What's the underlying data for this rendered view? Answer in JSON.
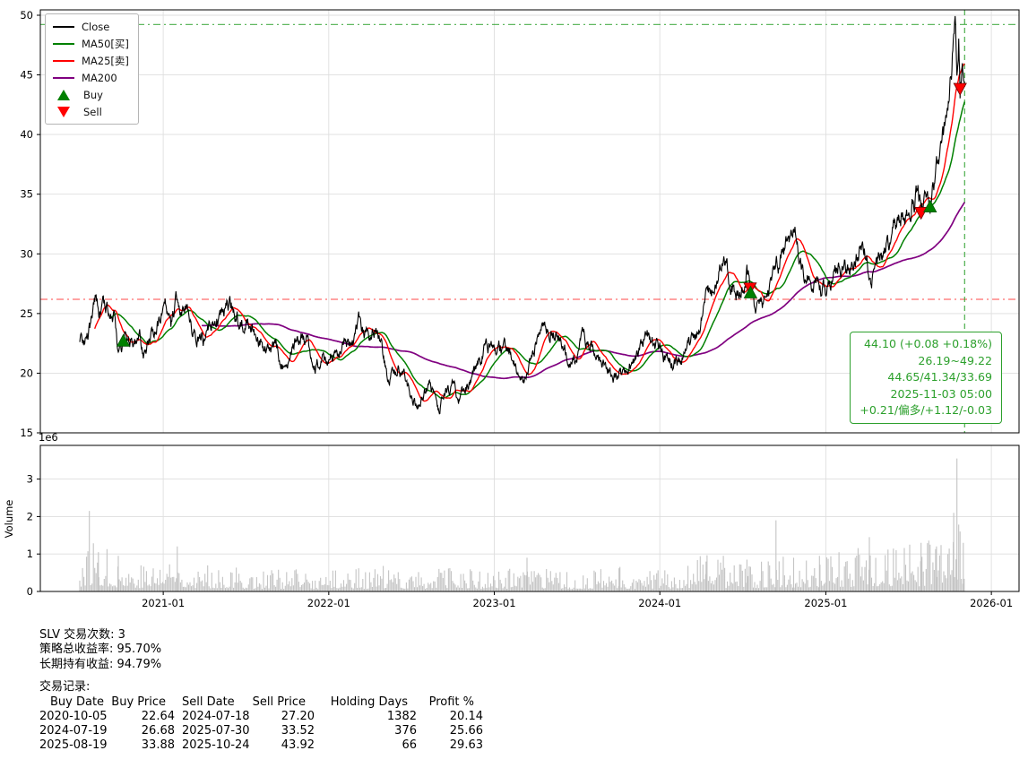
{
  "colors": {
    "close": "#000000",
    "ma50": "#008000",
    "ma25": "#ff0000",
    "ma200": "#800080",
    "buy": "#008000",
    "sell": "#ff0000",
    "hline_high": "#2ca02c",
    "hline_low": "#ff3b3b",
    "vline": "#2ca02c",
    "volume": "#c4c4c4",
    "grid": "#dedede",
    "annotation": "#2ca02c"
  },
  "chart_data": {
    "type": "line",
    "title": "",
    "xlabel": "",
    "ylabel_volume": "Volume",
    "volume_scale_label": "1e6",
    "xlim": [
      "2020-04-05",
      "2026-03-03"
    ],
    "x_ticks": [
      "2021-01",
      "2022-01",
      "2023-01",
      "2024-01",
      "2025-01",
      "2026-01"
    ],
    "price_ylim": [
      15,
      50
    ],
    "price_yticks": [
      15,
      20,
      25,
      30,
      35,
      40,
      45,
      50
    ],
    "volume_ylim": [
      0,
      3900000
    ],
    "volume_yticks": [
      0,
      1,
      2,
      3
    ],
    "ma_windows": {
      "ma25": 25,
      "ma50": 50,
      "ma200": 200
    },
    "legend": [
      {
        "key": "close",
        "label": "Close",
        "type": "line",
        "color_key": "close",
        "icon": "close-line-swatch"
      },
      {
        "key": "ma50",
        "label": "MA50[买]",
        "type": "line",
        "color_key": "ma50",
        "icon": "ma50-line-swatch"
      },
      {
        "key": "ma25",
        "label": "MA25[卖]",
        "type": "line",
        "color_key": "ma25",
        "icon": "ma25-line-swatch"
      },
      {
        "key": "ma200",
        "label": "MA200",
        "type": "line",
        "color_key": "ma200",
        "icon": "ma200-line-swatch"
      },
      {
        "key": "buy",
        "label": "Buy",
        "type": "triangle-up",
        "color_key": "buy",
        "icon": "buy-triangle-icon"
      },
      {
        "key": "sell",
        "label": "Sell",
        "type": "triangle-down",
        "color_key": "sell",
        "icon": "sell-triangle-icon"
      }
    ],
    "hlines": [
      {
        "name": "high-52w-line",
        "value": 49.22,
        "color_key": "hline_high",
        "style": "dashdot"
      },
      {
        "name": "low-52w-line",
        "value": 26.19,
        "color_key": "hline_low",
        "style": "dashdot"
      }
    ],
    "vline": {
      "date": "2025-11-03",
      "color_key": "vline",
      "style": "dashed"
    },
    "annotation": {
      "lines": [
        "44.10 (+0.08 +0.18%)",
        "26.19~49.22",
        "44.65/41.34/33.69",
        "2025-11-03 05:00",
        "+0.21/偏多/+1.12/-0.03"
      ]
    },
    "trades": [
      {
        "buy_date": "2020-10-05",
        "buy_price": 22.64,
        "sell_date": "2024-07-18",
        "sell_price": 27.2,
        "holding_days": 1382,
        "profit_pct": 20.14
      },
      {
        "buy_date": "2024-07-19",
        "buy_price": 26.68,
        "sell_date": "2025-07-30",
        "sell_price": 33.52,
        "holding_days": 376,
        "profit_pct": 25.66
      },
      {
        "buy_date": "2025-08-19",
        "buy_price": 33.88,
        "sell_date": "2025-10-24",
        "sell_price": 43.92,
        "holding_days": 66,
        "profit_pct": 29.63
      }
    ],
    "close_anchors": [
      [
        "2020-07-01",
        22.3
      ],
      [
        "2020-07-17",
        22.8
      ],
      [
        "2020-07-28",
        24.3
      ],
      [
        "2020-08-06",
        26.9
      ],
      [
        "2020-08-12",
        24.7
      ],
      [
        "2020-08-18",
        25.3
      ],
      [
        "2020-09-01",
        25.5
      ],
      [
        "2020-09-14",
        25.1
      ],
      [
        "2020-09-24",
        21.7
      ],
      [
        "2020-10-05",
        22.64
      ],
      [
        "2020-10-12",
        23.3
      ],
      [
        "2020-10-29",
        21.9
      ],
      [
        "2020-11-09",
        23.3
      ],
      [
        "2020-11-24",
        21.3
      ],
      [
        "2020-12-01",
        22.4
      ],
      [
        "2020-12-17",
        24.1
      ],
      [
        "2021-01-06",
        25.4
      ],
      [
        "2021-01-18",
        23.6
      ],
      [
        "2021-02-01",
        26.2
      ],
      [
        "2021-02-10",
        25.1
      ],
      [
        "2021-02-22",
        26.0
      ],
      [
        "2021-03-05",
        23.4
      ],
      [
        "2021-03-31",
        22.6
      ],
      [
        "2021-04-20",
        24.2
      ],
      [
        "2021-05-17",
        25.8
      ],
      [
        "2021-06-02",
        25.5
      ],
      [
        "2021-06-18",
        24.0
      ],
      [
        "2021-07-06",
        24.2
      ],
      [
        "2021-08-09",
        22.1
      ],
      [
        "2021-08-20",
        21.6
      ],
      [
        "2021-09-07",
        22.4
      ],
      [
        "2021-09-29",
        20.1
      ],
      [
        "2021-10-22",
        22.7
      ],
      [
        "2021-11-12",
        23.2
      ],
      [
        "2021-12-02",
        20.9
      ],
      [
        "2021-12-31",
        21.6
      ],
      [
        "2022-01-25",
        22.1
      ],
      [
        "2022-02-24",
        22.7
      ],
      [
        "2022-03-08",
        24.0
      ],
      [
        "2022-03-29",
        23.3
      ],
      [
        "2022-04-18",
        24.0
      ],
      [
        "2022-05-12",
        19.6
      ],
      [
        "2022-06-03",
        20.5
      ],
      [
        "2022-07-14",
        17.3
      ],
      [
        "2022-08-12",
        19.0
      ],
      [
        "2022-09-01",
        16.9
      ],
      [
        "2022-09-12",
        18.2
      ],
      [
        "2022-10-03",
        19.2
      ],
      [
        "2022-10-14",
        17.6
      ],
      [
        "2022-11-15",
        20.0
      ],
      [
        "2022-12-13",
        22.3
      ],
      [
        "2023-01-03",
        22.2
      ],
      [
        "2023-02-02",
        22.1
      ],
      [
        "2023-03-08",
        18.9
      ],
      [
        "2023-04-13",
        23.6
      ],
      [
        "2023-05-05",
        23.8
      ],
      [
        "2023-06-22",
        21.0
      ],
      [
        "2023-07-19",
        23.1
      ],
      [
        "2023-08-21",
        20.9
      ],
      [
        "2023-10-02",
        19.6
      ],
      [
        "2023-11-22",
        22.2
      ],
      [
        "2023-12-01",
        23.3
      ],
      [
        "2024-01-19",
        20.9
      ],
      [
        "2024-02-09",
        20.8
      ],
      [
        "2024-03-20",
        23.1
      ],
      [
        "2024-04-12",
        26.1
      ],
      [
        "2024-05-20",
        29.6
      ],
      [
        "2024-06-10",
        27.1
      ],
      [
        "2024-06-26",
        26.6
      ],
      [
        "2024-07-11",
        28.7
      ],
      [
        "2024-07-18",
        27.2
      ],
      [
        "2024-07-23",
        26.5
      ],
      [
        "2024-08-07",
        24.9
      ],
      [
        "2024-09-13",
        28.6
      ],
      [
        "2024-10-22",
        31.6
      ],
      [
        "2024-11-15",
        28.2
      ],
      [
        "2024-12-30",
        26.8
      ],
      [
        "2025-01-31",
        28.9
      ],
      [
        "2025-02-28",
        28.7
      ],
      [
        "2025-03-27",
        31.2
      ],
      [
        "2025-04-10",
        27.6
      ],
      [
        "2025-05-06",
        30.1
      ],
      [
        "2025-06-05",
        33.1
      ],
      [
        "2025-06-27",
        33.3
      ],
      [
        "2025-07-23",
        35.3
      ],
      [
        "2025-07-30",
        33.52
      ],
      [
        "2025-08-11",
        34.0
      ],
      [
        "2025-08-19",
        33.88
      ],
      [
        "2025-09-02",
        37.0
      ],
      [
        "2025-09-23",
        40.5
      ],
      [
        "2025-10-03",
        44.5
      ],
      [
        "2025-10-09",
        47.5
      ],
      [
        "2025-10-14",
        49.2
      ],
      [
        "2025-10-17",
        46.8
      ],
      [
        "2025-10-21",
        48.6
      ],
      [
        "2025-10-24",
        43.92
      ],
      [
        "2025-10-29",
        45.9
      ],
      [
        "2025-11-03",
        44.1
      ]
    ],
    "volume_base": [
      [
        "2020-07",
        0.55
      ],
      [
        "2020-08",
        0.8
      ],
      [
        "2020-09",
        0.6
      ],
      [
        "2020-10",
        0.45
      ],
      [
        "2020-11",
        0.42
      ],
      [
        "2020-12",
        0.4
      ],
      [
        "2021-01",
        0.5
      ],
      [
        "2021-02",
        0.6
      ],
      [
        "2021-03",
        0.45
      ],
      [
        "2021-04",
        0.35
      ],
      [
        "2021-05",
        0.42
      ],
      [
        "2021-06",
        0.38
      ],
      [
        "2021-07",
        0.32
      ],
      [
        "2021-08",
        0.3
      ],
      [
        "2021-09",
        0.36
      ],
      [
        "2021-10",
        0.3
      ],
      [
        "2021-11",
        0.32
      ],
      [
        "2021-12",
        0.26
      ],
      [
        "2022-01",
        0.3
      ],
      [
        "2022-02",
        0.36
      ],
      [
        "2022-03",
        0.36
      ],
      [
        "2022-04",
        0.3
      ],
      [
        "2022-05",
        0.36
      ],
      [
        "2022-06",
        0.3
      ],
      [
        "2022-07",
        0.36
      ],
      [
        "2022-08",
        0.3
      ],
      [
        "2022-09",
        0.4
      ],
      [
        "2022-10",
        0.32
      ],
      [
        "2022-11",
        0.36
      ],
      [
        "2022-12",
        0.3
      ],
      [
        "2023-01",
        0.3
      ],
      [
        "2023-02",
        0.32
      ],
      [
        "2023-03",
        0.46
      ],
      [
        "2023-04",
        0.3
      ],
      [
        "2023-05",
        0.32
      ],
      [
        "2023-06",
        0.26
      ],
      [
        "2023-07",
        0.3
      ],
      [
        "2023-08",
        0.3
      ],
      [
        "2023-09",
        0.32
      ],
      [
        "2023-10",
        0.36
      ],
      [
        "2023-11",
        0.3
      ],
      [
        "2023-12",
        0.3
      ],
      [
        "2024-01",
        0.3
      ],
      [
        "2024-02",
        0.36
      ],
      [
        "2024-03",
        0.42
      ],
      [
        "2024-04",
        0.52
      ],
      [
        "2024-05",
        0.5
      ],
      [
        "2024-06",
        0.4
      ],
      [
        "2024-07",
        0.5
      ],
      [
        "2024-08",
        0.4
      ],
      [
        "2024-09",
        0.5
      ],
      [
        "2024-10",
        0.52
      ],
      [
        "2024-11",
        0.45
      ],
      [
        "2024-12",
        0.5
      ],
      [
        "2025-01",
        0.5
      ],
      [
        "2025-02",
        0.55
      ],
      [
        "2025-03",
        0.55
      ],
      [
        "2025-04",
        0.7
      ],
      [
        "2025-05",
        0.6
      ],
      [
        "2025-06",
        0.62
      ],
      [
        "2025-07",
        0.68
      ],
      [
        "2025-08",
        0.62
      ],
      [
        "2025-09",
        0.85
      ],
      [
        "2025-10",
        1.05
      ],
      [
        "2025-11",
        0.9
      ]
    ],
    "volume_spikes": [
      [
        "2020-07-22",
        2.15
      ],
      [
        "2020-08-11",
        1.05
      ],
      [
        "2020-09-24",
        0.95
      ],
      [
        "2021-02-01",
        1.2
      ],
      [
        "2022-03-08",
        0.62
      ],
      [
        "2022-09-01",
        0.6
      ],
      [
        "2023-03-14",
        0.9
      ],
      [
        "2023-10-03",
        0.62
      ],
      [
        "2024-04-12",
        0.8
      ],
      [
        "2024-05-20",
        0.95
      ],
      [
        "2024-07-11",
        0.85
      ],
      [
        "2024-09-13",
        1.9
      ],
      [
        "2024-10-22",
        0.9
      ],
      [
        "2024-12-18",
        0.95
      ],
      [
        "2025-04-07",
        1.45
      ],
      [
        "2025-06-05",
        1.1
      ],
      [
        "2025-07-30",
        1.3
      ],
      [
        "2025-09-02",
        1.2
      ],
      [
        "2025-10-10",
        2.1
      ],
      [
        "2025-10-17",
        3.55
      ],
      [
        "2025-10-24",
        1.6
      ],
      [
        "2025-10-31",
        1.3
      ]
    ]
  },
  "summary": {
    "trade_count_line": "SLV 交易次数: 3",
    "strategy_return_line": "策略总收益率: 95.70%",
    "hold_return_line": "长期持有收益: 94.79%",
    "records_label": "交易记录:",
    "table": {
      "headers": [
        "Buy Date",
        "Buy Price",
        "Sell Date",
        "Sell Price",
        "Holding Days",
        "Profit %"
      ],
      "rows": [
        [
          "2020-10-05",
          "22.64",
          "2024-07-18",
          "27.20",
          "1382",
          "20.14"
        ],
        [
          "2024-07-19",
          "26.68",
          "2025-07-30",
          "33.52",
          "376",
          "25.66"
        ],
        [
          "2025-08-19",
          "33.88",
          "2025-10-24",
          "43.92",
          "66",
          "29.63"
        ]
      ]
    }
  }
}
